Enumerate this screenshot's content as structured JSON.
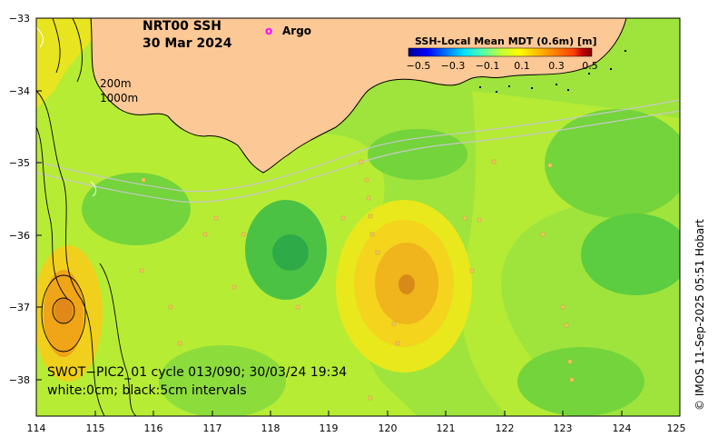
{
  "title": {
    "product": "NRT00 SSH",
    "date": "30 Mar 2024"
  },
  "legend": {
    "argo_marker": "o",
    "argo_label": "Argo"
  },
  "colorbar": {
    "title": "SSH-Local Mean MDT (0.6m) [m]",
    "ticks": [
      "−0.5",
      "−0.3",
      "−0.1",
      "0.1",
      "0.3",
      "0.5"
    ],
    "colors": [
      "#00008f",
      "#0000ff",
      "#006fff",
      "#00dfff",
      "#4fffaf",
      "#bfff3f",
      "#ffff00",
      "#ffbf00",
      "#ff7f00",
      "#ff3f00",
      "#bf0000",
      "#7f0000"
    ]
  },
  "isobaths": {
    "shallow": "200m",
    "deep": "1000m"
  },
  "annotations": {
    "swot_pass": "SWOT−PIC2_01 cycle 013/090; 30/03/24 19:34",
    "contour_note": "white:0cm; black:5cm intervals"
  },
  "credit": "© IMOS 11-Sep-2025 05:51 Hobart",
  "axes": {
    "x_ticks": [
      "114",
      "115",
      "116",
      "117",
      "118",
      "119",
      "120",
      "121",
      "122",
      "123",
      "124",
      "125"
    ],
    "y_ticks": [
      "−33",
      "−34",
      "−35",
      "−36",
      "−37",
      "−38"
    ],
    "lon_range": [
      114,
      125
    ],
    "lat_range": [
      -38.5,
      -33
    ]
  },
  "colors": {
    "land": "#fcc896",
    "field_base": "#9ee43c",
    "high_anomaly": "#f0a218",
    "low_anomaly": "#1fb84a",
    "marker": "#f0c85a",
    "argo": "#ff00ff"
  }
}
